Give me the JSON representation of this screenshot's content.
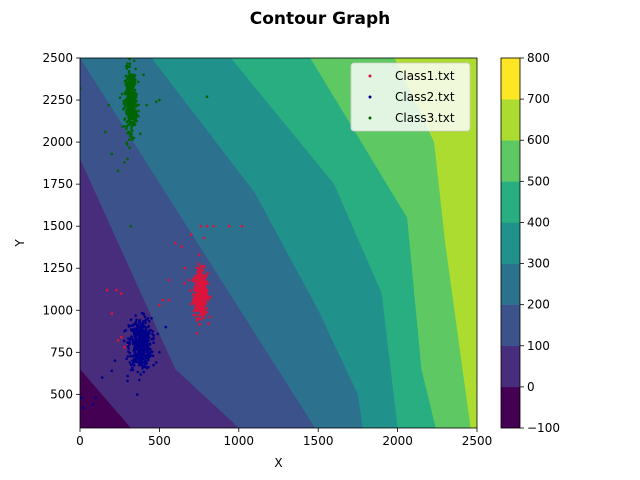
{
  "chart_data": {
    "type": "contour",
    "title": "Contour Graph",
    "xlabel": "X",
    "ylabel": "Y",
    "xlim": [
      0,
      2500
    ],
    "ylim": [
      300,
      2500
    ],
    "xticks": [
      0,
      500,
      1000,
      1500,
      2000,
      2500
    ],
    "yticks": [
      500,
      750,
      1000,
      1250,
      1500,
      1750,
      2000,
      2250,
      2500
    ],
    "colorbar": {
      "levels": [
        -100,
        0,
        100,
        200,
        300,
        400,
        500,
        600,
        700,
        800
      ],
      "ticks": [
        -100,
        0,
        100,
        200,
        300,
        400,
        500,
        600,
        700,
        800
      ],
      "colors": [
        "#440154",
        "#472d7b",
        "#3b528b",
        "#2c728e",
        "#21918c",
        "#28ae80",
        "#5ec962",
        "#addc30",
        "#fde725"
      ]
    },
    "legend": {
      "placement": "top-right",
      "entries": [
        {
          "label": "Class1.txt",
          "color": "#dc143c"
        },
        {
          "label": "Class2.txt",
          "color": "#00008b"
        },
        {
          "label": "Class3.txt",
          "color": "#006400"
        }
      ]
    },
    "series": [
      {
        "name": "Class1.txt",
        "color": "#dc143c",
        "center": [
          760,
          1100
        ],
        "spread": [
          22,
          70
        ],
        "count": 420,
        "outliers": [
          [
            600,
            1400
          ],
          [
            640,
            1380
          ],
          [
            700,
            1450
          ],
          [
            760,
            1500
          ],
          [
            800,
            1500
          ],
          [
            840,
            1500
          ],
          [
            940,
            1500
          ],
          [
            1020,
            1500
          ],
          [
            780,
            1430
          ],
          [
            660,
            1250
          ],
          [
            560,
            1180
          ],
          [
            560,
            1060
          ],
          [
            520,
            1060
          ],
          [
            500,
            1030
          ],
          [
            300,
            800
          ],
          [
            280,
            780
          ],
          [
            260,
            840
          ],
          [
            240,
            820
          ],
          [
            200,
            980
          ],
          [
            230,
            1120
          ],
          [
            260,
            1100
          ],
          [
            170,
            1120
          ],
          [
            660,
            1160
          ]
        ]
      },
      {
        "name": "Class2.txt",
        "color": "#00008b",
        "center": [
          380,
          800
        ],
        "spread": [
          35,
          75
        ],
        "count": 480,
        "outliers": [
          [
            100,
            480
          ],
          [
            80,
            440
          ],
          [
            20,
            420
          ],
          [
            10,
            480
          ],
          [
            140,
            600
          ],
          [
            200,
            640
          ],
          [
            220,
            700
          ],
          [
            500,
            750
          ],
          [
            480,
            690
          ],
          [
            300,
            580
          ],
          [
            540,
            900
          ]
        ]
      },
      {
        "name": "Class3.txt",
        "color": "#006400",
        "center": [
          320,
          2250
        ],
        "spread": [
          18,
          90
        ],
        "count": 380,
        "outliers": [
          [
            0,
            2320
          ],
          [
            180,
            2220
          ],
          [
            160,
            2060
          ],
          [
            200,
            1930
          ],
          [
            240,
            1830
          ],
          [
            280,
            1880
          ],
          [
            300,
            1900
          ],
          [
            420,
            2220
          ],
          [
            480,
            2240
          ],
          [
            500,
            2250
          ],
          [
            800,
            2270
          ],
          [
            320,
            1500
          ],
          [
            380,
            2050
          ],
          [
            400,
            2400
          ]
        ]
      }
    ]
  }
}
